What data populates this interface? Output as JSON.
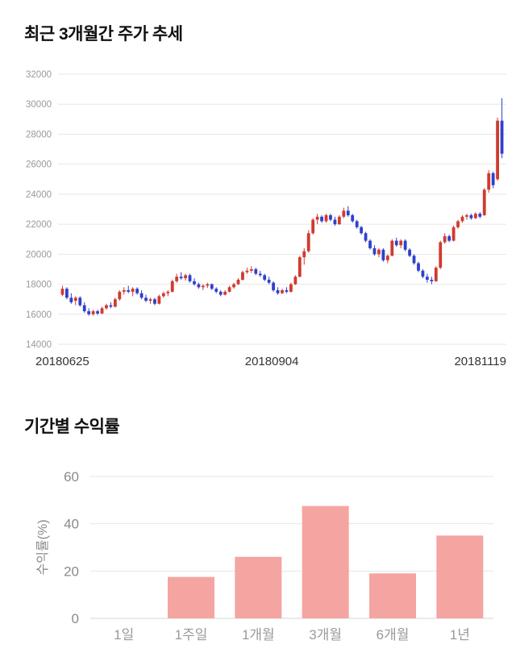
{
  "section1": {
    "title": "최근 3개월간 주가 추세"
  },
  "section2": {
    "title": "기간별 수익률"
  },
  "chart_data": [
    {
      "type": "candlestick",
      "title": "최근 3개월간 주가 추세",
      "ylim": [
        14000,
        32000
      ],
      "yticks": [
        14000,
        16000,
        18000,
        20000,
        22000,
        24000,
        26000,
        28000,
        30000,
        32000
      ],
      "xtick_labels": [
        "20180625",
        "20180904",
        "20181119"
      ],
      "grid": true,
      "grid_color": "#e7e7e7",
      "up_color": "#cf3b2f",
      "down_color": "#3040cb",
      "candle_format": [
        "open",
        "high",
        "low",
        "close"
      ],
      "candles": [
        [
          17300,
          17900,
          17200,
          17700
        ],
        [
          17700,
          17800,
          17000,
          17100
        ],
        [
          17100,
          17400,
          16700,
          16800
        ],
        [
          16900,
          17200,
          16600,
          17100
        ],
        [
          17100,
          17200,
          16500,
          16600
        ],
        [
          16600,
          16800,
          16100,
          16200
        ],
        [
          16200,
          16400,
          15900,
          16000
        ],
        [
          16000,
          16300,
          15900,
          16200
        ],
        [
          16200,
          16300,
          15950,
          16050
        ],
        [
          16050,
          16500,
          16000,
          16400
        ],
        [
          16400,
          16700,
          16300,
          16600
        ],
        [
          16600,
          16800,
          16400,
          16500
        ],
        [
          16500,
          17100,
          16450,
          17000
        ],
        [
          17000,
          17600,
          16900,
          17500
        ],
        [
          17500,
          17800,
          17300,
          17600
        ],
        [
          17600,
          17900,
          17400,
          17500
        ],
        [
          17500,
          17800,
          17200,
          17700
        ],
        [
          17700,
          17800,
          17300,
          17400
        ],
        [
          17400,
          17600,
          17000,
          17100
        ],
        [
          17100,
          17300,
          16800,
          16900
        ],
        [
          16900,
          17100,
          16700,
          17000
        ],
        [
          17000,
          17100,
          16600,
          16700
        ],
        [
          16700,
          17300,
          16650,
          17200
        ],
        [
          17200,
          17500,
          17100,
          17400
        ],
        [
          17400,
          17600,
          17200,
          17500
        ],
        [
          17500,
          18300,
          17450,
          18200
        ],
        [
          18200,
          18700,
          18100,
          18500
        ],
        [
          18500,
          18800,
          18300,
          18400
        ],
        [
          18400,
          18700,
          18250,
          18600
        ],
        [
          18600,
          18700,
          18100,
          18200
        ],
        [
          18200,
          18400,
          17900,
          18000
        ],
        [
          18000,
          18100,
          17700,
          17800
        ],
        [
          17800,
          18000,
          17600,
          17900
        ],
        [
          17900,
          18100,
          17750,
          18000
        ],
        [
          18000,
          18050,
          17600,
          17700
        ],
        [
          17700,
          17800,
          17400,
          17500
        ],
        [
          17500,
          17600,
          17200,
          17300
        ],
        [
          17300,
          17600,
          17250,
          17500
        ],
        [
          17500,
          17900,
          17450,
          17800
        ],
        [
          17800,
          18100,
          17700,
          18000
        ],
        [
          18000,
          18400,
          17950,
          18300
        ],
        [
          18300,
          18900,
          18250,
          18800
        ],
        [
          18800,
          19100,
          18700,
          18900
        ],
        [
          18900,
          19200,
          18750,
          19000
        ],
        [
          19000,
          19100,
          18600,
          18700
        ],
        [
          18700,
          18900,
          18500,
          18600
        ],
        [
          18600,
          18700,
          18200,
          18300
        ],
        [
          18300,
          18500,
          18000,
          18100
        ],
        [
          18100,
          18200,
          17500,
          17600
        ],
        [
          17600,
          17800,
          17300,
          17400
        ],
        [
          17400,
          17700,
          17350,
          17600
        ],
        [
          17600,
          17800,
          17400,
          17500
        ],
        [
          17500,
          18100,
          17450,
          18000
        ],
        [
          18000,
          18600,
          17950,
          18500
        ],
        [
          18500,
          19900,
          18450,
          19800
        ],
        [
          19800,
          20400,
          19300,
          20200
        ],
        [
          20200,
          21600,
          20100,
          21400
        ],
        [
          21400,
          22400,
          21300,
          22300
        ],
        [
          22300,
          22700,
          22000,
          22500
        ],
        [
          22500,
          22600,
          22100,
          22200
        ],
        [
          22200,
          22700,
          22100,
          22600
        ],
        [
          22600,
          22700,
          22200,
          22300
        ],
        [
          22300,
          22500,
          21900,
          22000
        ],
        [
          22000,
          22600,
          21950,
          22500
        ],
        [
          22500,
          23100,
          22400,
          22900
        ],
        [
          22900,
          23200,
          22500,
          22600
        ],
        [
          22600,
          22700,
          22100,
          22200
        ],
        [
          22200,
          22300,
          21700,
          21800
        ],
        [
          21800,
          21900,
          21300,
          21400
        ],
        [
          21400,
          21500,
          20800,
          20900
        ],
        [
          20900,
          21000,
          20300,
          20400
        ],
        [
          20400,
          20600,
          19900,
          20000
        ],
        [
          20000,
          20400,
          19800,
          20300
        ],
        [
          20300,
          20400,
          19500,
          19600
        ],
        [
          19600,
          20000,
          19400,
          19900
        ],
        [
          19900,
          21000,
          19850,
          20900
        ],
        [
          20900,
          21100,
          20500,
          20600
        ],
        [
          20600,
          21000,
          20400,
          20900
        ],
        [
          20900,
          21000,
          20200,
          20300
        ],
        [
          20300,
          20400,
          19800,
          19900
        ],
        [
          19900,
          20000,
          19300,
          19400
        ],
        [
          19400,
          19500,
          18800,
          18900
        ],
        [
          18900,
          19000,
          18400,
          18500
        ],
        [
          18500,
          18700,
          18100,
          18300
        ],
        [
          18300,
          18500,
          18000,
          18200
        ],
        [
          18200,
          19200,
          18150,
          19100
        ],
        [
          19100,
          20900,
          19000,
          20800
        ],
        [
          20800,
          21400,
          20700,
          21200
        ],
        [
          21200,
          21300,
          20800,
          20900
        ],
        [
          20900,
          21900,
          20850,
          21800
        ],
        [
          21800,
          22300,
          21700,
          22200
        ],
        [
          22200,
          22600,
          22100,
          22500
        ],
        [
          22500,
          22700,
          22300,
          22600
        ],
        [
          22600,
          22700,
          22300,
          22400
        ],
        [
          22400,
          22800,
          22350,
          22700
        ],
        [
          22700,
          22800,
          22400,
          22500
        ],
        [
          22600,
          24400,
          22550,
          24300
        ],
        [
          24300,
          25600,
          24100,
          25400
        ],
        [
          25400,
          25500,
          24400,
          24600
        ],
        [
          25000,
          29100,
          24900,
          28900
        ],
        [
          28900,
          30400,
          26400,
          26700
        ]
      ]
    },
    {
      "type": "bar",
      "title": "기간별 수익률",
      "categories": [
        "1일",
        "1주일",
        "1개월",
        "3개월",
        "6개월",
        "1년"
      ],
      "values": [
        0,
        17.5,
        26,
        47.5,
        19,
        35
      ],
      "ylabel": "수익률(%)",
      "ylim": [
        0,
        60
      ],
      "yticks": [
        0,
        20,
        40,
        60
      ],
      "grid": true,
      "grid_color": "#e5e5e5",
      "bar_color": "#f4a5a1",
      "tick_color": "#8a8a8a",
      "category_color": "#999999"
    }
  ]
}
